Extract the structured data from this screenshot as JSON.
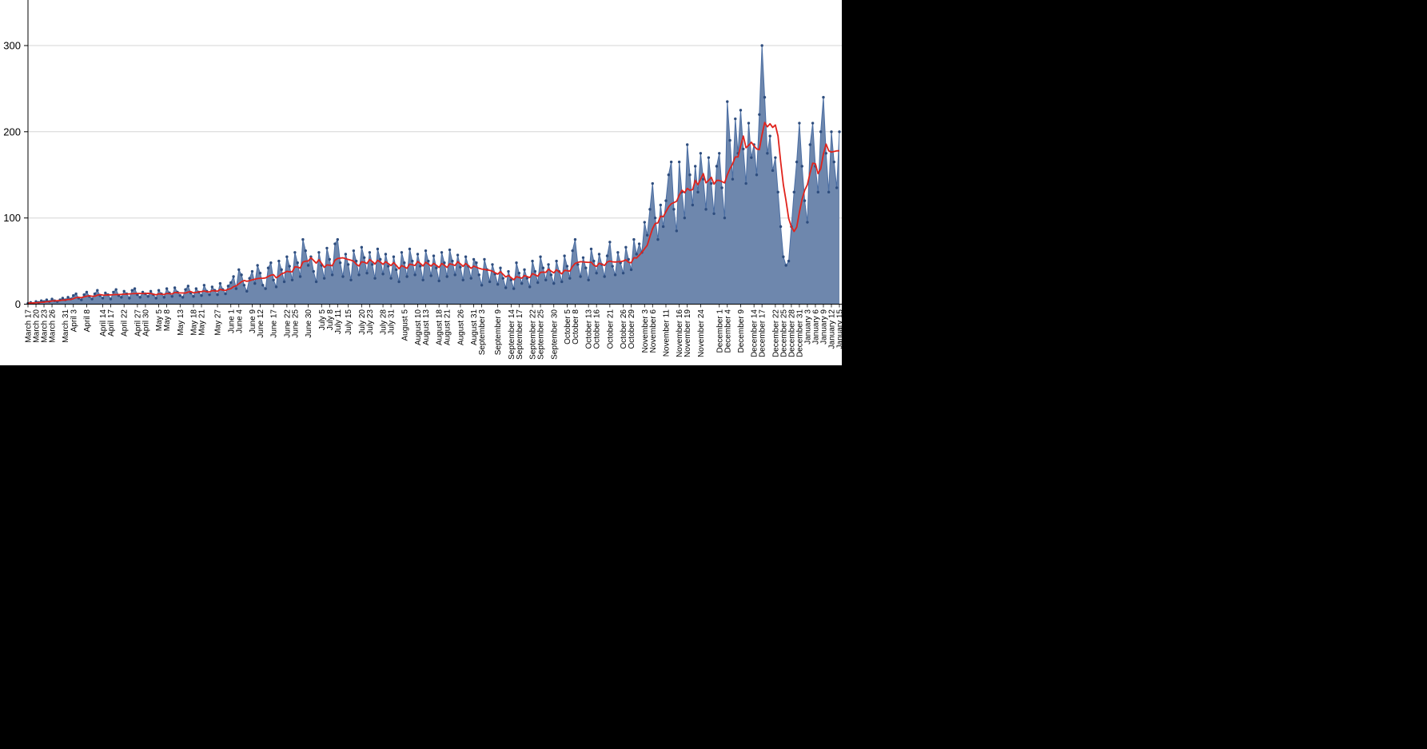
{
  "chart_data": {
    "type": "area",
    "title": "",
    "xlabel": "",
    "ylabel": "",
    "x_range_label": "March 17 to January 15 (daily values)",
    "yticks": [
      0,
      100,
      200,
      300
    ],
    "ylim": [
      0,
      355
    ],
    "grid": "horizontal-light-gray",
    "legend_position": "none",
    "colors": {
      "area_fill": "#6e87ad",
      "area_stroke": "#4b6ea3",
      "marker": "#2e4d7e",
      "avg_line": "#e0231c",
      "grid": "#d6d6d6",
      "axis": "#000000",
      "label_text": "#000000",
      "panel_background": "#ffffff",
      "page_background": "#000000"
    },
    "tick_labels": [
      "March 17",
      "March 20",
      "March 23",
      "March 26",
      "March 31",
      "April 3",
      "April 8",
      "April 14",
      "April 17",
      "April 22",
      "April 27",
      "April 30",
      "May 5",
      "May 8",
      "May 13",
      "May 18",
      "May 21",
      "May 27",
      "June 1",
      "June 4",
      "June 9",
      "June 12",
      "June 17",
      "June 22",
      "June 25",
      "June 30",
      "July 5",
      "July 8",
      "July 11",
      "July 15",
      "July 20",
      "July 23",
      "July 28",
      "July 31",
      "August 5",
      "August 10",
      "August 13",
      "August 18",
      "August 21",
      "August 26",
      "August 31",
      "September 3",
      "September 9",
      "September 14",
      "September 17",
      "September 22",
      "September 25",
      "September 30",
      "October 5",
      "October 8",
      "October 13",
      "October 16",
      "October 21",
      "October 26",
      "October 29",
      "November 3",
      "November 6",
      "November 11",
      "November 16",
      "November 19",
      "November 24",
      "December 1",
      "December 4",
      "December 9",
      "December 14",
      "December 17",
      "December 22",
      "December 25",
      "December 28",
      "December 31",
      "January 3",
      "January 6",
      "January 9",
      "January 12",
      "January 15"
    ],
    "tick_days": [
      0,
      3,
      6,
      9,
      14,
      17,
      22,
      28,
      31,
      36,
      41,
      44,
      49,
      52,
      57,
      62,
      65,
      71,
      76,
      79,
      84,
      87,
      92,
      97,
      100,
      105,
      110,
      113,
      116,
      120,
      125,
      128,
      133,
      136,
      141,
      146,
      149,
      154,
      157,
      162,
      167,
      170,
      176,
      181,
      184,
      189,
      192,
      197,
      202,
      205,
      210,
      213,
      218,
      223,
      226,
      231,
      234,
      239,
      244,
      247,
      252,
      259,
      262,
      267,
      272,
      275,
      280,
      283,
      286,
      289,
      292,
      295,
      298,
      301,
      304
    ],
    "series": [
      {
        "name": "daily-count",
        "style": "area-with-markers",
        "values": [
          1,
          2,
          1,
          3,
          2,
          4,
          3,
          5,
          3,
          6,
          4,
          3,
          5,
          7,
          5,
          8,
          6,
          10,
          12,
          7,
          5,
          11,
          14,
          9,
          6,
          12,
          16,
          10,
          7,
          13,
          11,
          6,
          14,
          17,
          10,
          8,
          15,
          12,
          7,
          16,
          18,
          11,
          8,
          14,
          12,
          9,
          15,
          11,
          7,
          16,
          12,
          8,
          18,
          13,
          9,
          19,
          14,
          10,
          8,
          17,
          21,
          13,
          9,
          18,
          14,
          10,
          22,
          15,
          11,
          20,
          16,
          11,
          24,
          17,
          12,
          21,
          25,
          32,
          18,
          40,
          34,
          22,
          15,
          30,
          38,
          24,
          45,
          36,
          22,
          18,
          42,
          48,
          28,
          20,
          50,
          40,
          26,
          55,
          44,
          28,
          60,
          48,
          32,
          75,
          62,
          45,
          55,
          38,
          26,
          60,
          45,
          30,
          65,
          52,
          34,
          70,
          75,
          48,
          32,
          58,
          46,
          28,
          62,
          50,
          34,
          66,
          54,
          36,
          60,
          46,
          30,
          64,
          52,
          35,
          58,
          44,
          30,
          55,
          40,
          26,
          60,
          48,
          32,
          64,
          50,
          34,
          58,
          44,
          28,
          62,
          50,
          33,
          56,
          42,
          27,
          60,
          48,
          32,
          63,
          50,
          34,
          57,
          43,
          28,
          55,
          44,
          30,
          52,
          48,
          34,
          22,
          52,
          40,
          26,
          46,
          35,
          23,
          42,
          30,
          19,
          38,
          28,
          18,
          48,
          36,
          24,
          40,
          30,
          20,
          50,
          38,
          25,
          55,
          42,
          28,
          46,
          34,
          24,
          50,
          38,
          26,
          56,
          44,
          30,
          62,
          75,
          46,
          32,
          54,
          42,
          28,
          64,
          50,
          36,
          58,
          46,
          32,
          56,
          72,
          44,
          34,
          60,
          48,
          36,
          66,
          52,
          40,
          75,
          58,
          70,
          60,
          95,
          80,
          110,
          140,
          100,
          75,
          115,
          90,
          120,
          150,
          165,
          110,
          85,
          165,
          130,
          100,
          185,
          150,
          115,
          160,
          130,
          175,
          145,
          110,
          170,
          140,
          105,
          160,
          175,
          135,
          100,
          235,
          190,
          145,
          215,
          175,
          225,
          180,
          140,
          210,
          170,
          185,
          150,
          220,
          300,
          240,
          175,
          195,
          155,
          170,
          130,
          90,
          55,
          45,
          50,
          90,
          130,
          165,
          210,
          160,
          120,
          95,
          185,
          210,
          160,
          130,
          200,
          240,
          175,
          130,
          200,
          165,
          135,
          200
        ]
      },
      {
        "name": "7-day-moving-average",
        "style": "line",
        "derived_from": "daily-count",
        "window": 7
      }
    ]
  }
}
